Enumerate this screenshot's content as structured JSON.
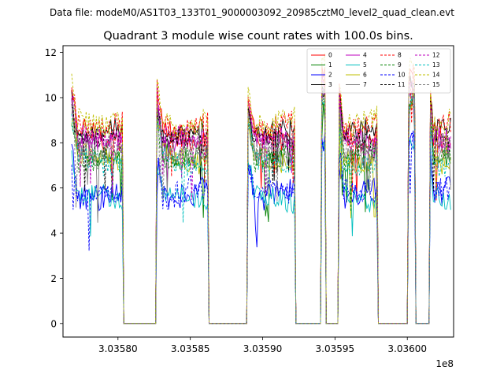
{
  "suptitle": "Data file: modeM0/AS1T03_133T01_9000003092_20985cztM0_level2_quad_clean.evt",
  "chart_data": {
    "type": "line",
    "title": "Quadrant 3 module wise count rates with 100.0s bins.",
    "xlabel": "",
    "ylabel": "",
    "x_offset_label": "1e8",
    "x_scale": 100000000,
    "xlim": [
      303576200,
      303603200
    ],
    "ylim": [
      -0.6,
      12.3
    ],
    "x_ticks": [
      303580000,
      303585000,
      303590000,
      303595000,
      303600000
    ],
    "x_tick_labels": [
      "3.03580",
      "3.03585",
      "3.03590",
      "3.03595",
      "3.03600"
    ],
    "y_ticks": [
      0,
      2,
      4,
      6,
      8,
      10,
      12
    ],
    "y_tick_labels": [
      "0",
      "2",
      "4",
      "6",
      "8",
      "10",
      "12"
    ],
    "bin_width": 100,
    "legend_position": "top-right",
    "gti_intervals": [
      [
        303576800,
        303580300
      ],
      [
        303582700,
        303586200
      ],
      [
        303589000,
        303592200
      ],
      [
        303594100,
        303594300
      ],
      [
        303595300,
        303597900
      ],
      [
        303600100,
        303600500
      ],
      [
        303601600,
        303603000
      ]
    ],
    "series": [
      {
        "name": "0",
        "color": "#ff0000",
        "dash": "solid",
        "mean": 8.3,
        "spread": 0.55
      },
      {
        "name": "1",
        "color": "#008000",
        "dash": "solid",
        "mean": 7.5,
        "spread": 0.5
      },
      {
        "name": "2",
        "color": "#0000ff",
        "dash": "solid",
        "mean": 5.8,
        "spread": 0.6
      },
      {
        "name": "3",
        "color": "#000000",
        "dash": "solid",
        "mean": 8.4,
        "spread": 0.5
      },
      {
        "name": "4",
        "color": "#bf00bf",
        "dash": "solid",
        "mean": 8.0,
        "spread": 0.5
      },
      {
        "name": "5",
        "color": "#00bfbf",
        "dash": "solid",
        "mean": 5.5,
        "spread": 0.45
      },
      {
        "name": "6",
        "color": "#bfbf00",
        "dash": "solid",
        "mean": 7.3,
        "spread": 0.5
      },
      {
        "name": "7",
        "color": "#808080",
        "dash": "solid",
        "mean": 7.6,
        "spread": 0.5
      },
      {
        "name": "8",
        "color": "#ff0000",
        "dash": "dashed",
        "mean": 8.8,
        "spread": 0.55
      },
      {
        "name": "9",
        "color": "#008000",
        "dash": "dashed",
        "mean": 7.4,
        "spread": 0.5
      },
      {
        "name": "10",
        "color": "#0000ff",
        "dash": "dashed",
        "mean": 5.7,
        "spread": 0.6
      },
      {
        "name": "11",
        "color": "#000000",
        "dash": "dashed",
        "mean": 8.0,
        "spread": 0.5
      },
      {
        "name": "12",
        "color": "#bf00bf",
        "dash": "dashed",
        "mean": 8.1,
        "spread": 0.5
      },
      {
        "name": "13",
        "color": "#00bfbf",
        "dash": "dashed",
        "mean": 7.2,
        "spread": 0.5
      },
      {
        "name": "14",
        "color": "#bfbf00",
        "dash": "dashed",
        "mean": 9.0,
        "spread": 0.55
      },
      {
        "name": "15",
        "color": "#808080",
        "dash": "dashed",
        "mean": 7.8,
        "spread": 0.5
      }
    ]
  }
}
